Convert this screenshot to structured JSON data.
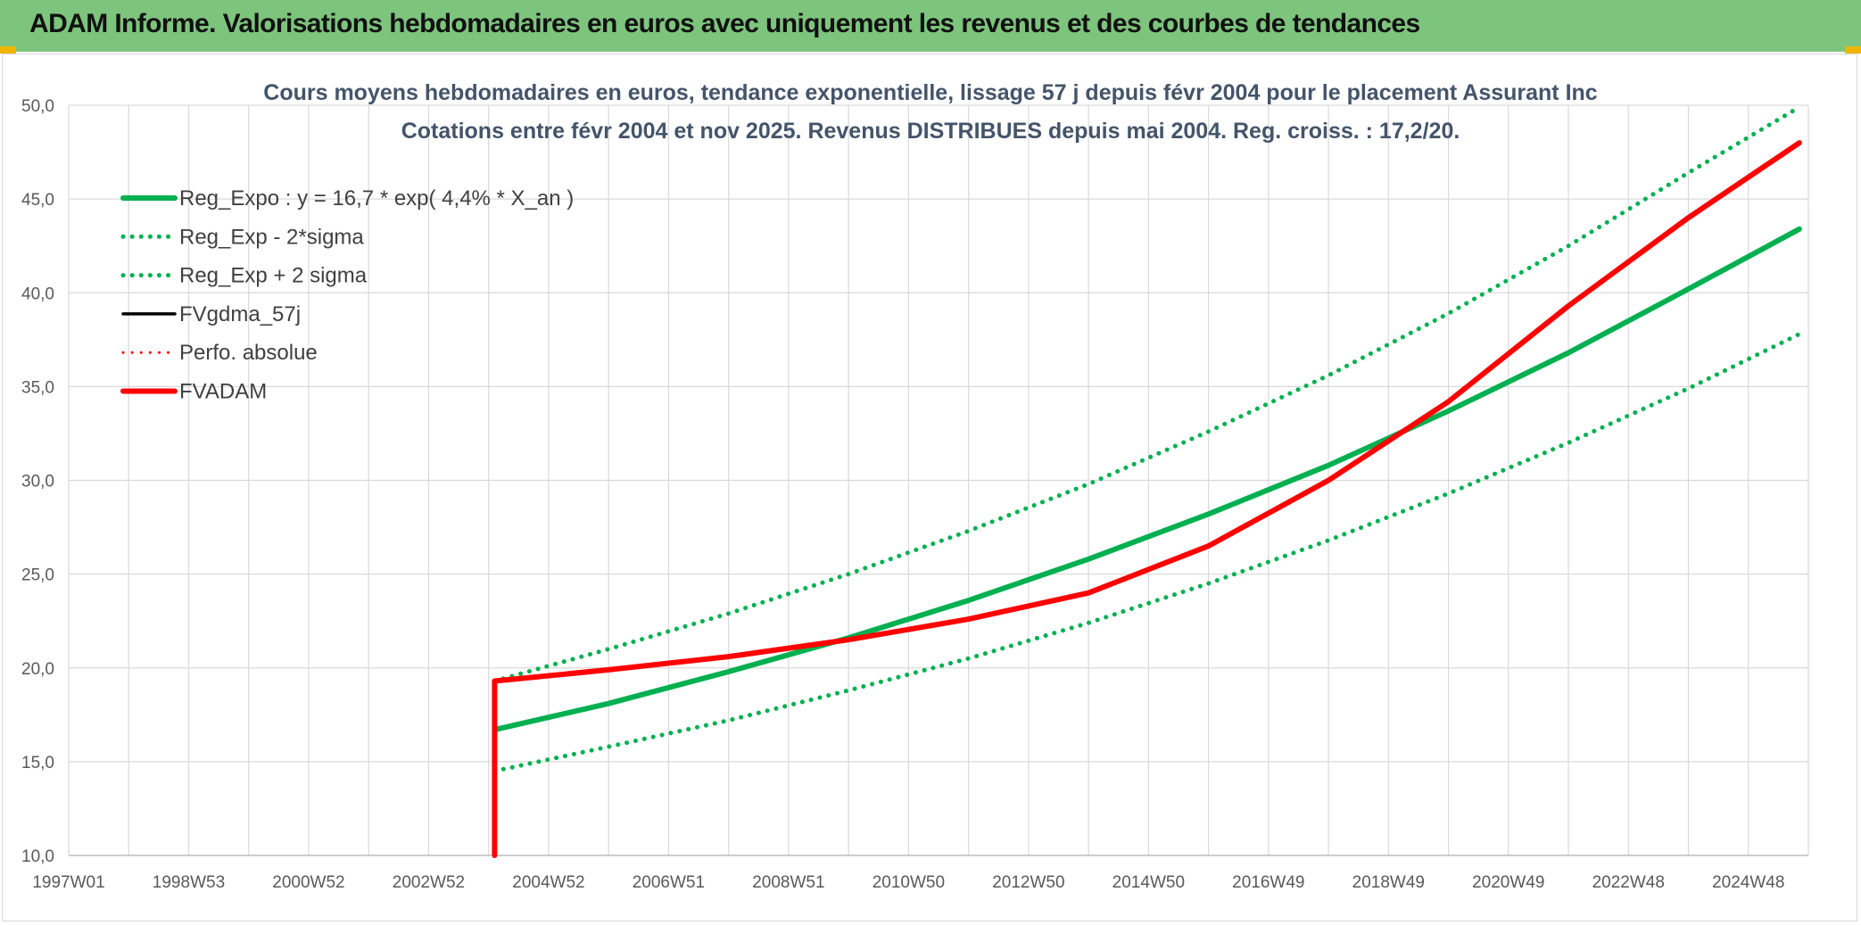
{
  "header": {
    "title": "ADAM Informe. Valorisations hebdomadaires en euros avec uniquement les revenus et des courbes de tendances"
  },
  "chart_data": {
    "type": "line",
    "title": "Cours moyens hebdomadaires en euros, tendance exponentielle, lissage 57 j depuis févr 2004 pour le placement Assurant Inc",
    "subtitle": "Cotations entre févr 2004 et nov 2025. Revenus DISTRIBUES depuis mai 2004. Reg. croiss. : 17,2/20.",
    "xlabel": "",
    "ylabel": "",
    "x_ticks": [
      "1997W01",
      "1998W53",
      "2000W52",
      "2002W52",
      "2004W52",
      "2006W51",
      "2008W51",
      "2010W50",
      "2012W50",
      "2014W50",
      "2016W49",
      "2018W49",
      "2020W49",
      "2022W48",
      "2024W48"
    ],
    "ylim": [
      10,
      50
    ],
    "xlim": [
      1997.0,
      2026.0
    ],
    "y_ticks": [
      "10,0",
      "15,0",
      "20,0",
      "25,0",
      "30,0",
      "35,0",
      "40,0",
      "45,0",
      "50,0"
    ],
    "grid": true,
    "legend_position": "top-left",
    "series": [
      {
        "name": "Reg_Expo : y = 16,7 * exp( 4,4% *  X_an )",
        "color": "#00b050",
        "style": "solid",
        "x": [
          2004.1,
          2006.0,
          2008.0,
          2010.0,
          2012.0,
          2014.0,
          2016.0,
          2018.0,
          2020.0,
          2022.0,
          2024.0,
          2025.85
        ],
        "y": [
          16.7,
          18.1,
          19.8,
          21.6,
          23.6,
          25.8,
          28.2,
          30.8,
          33.7,
          36.8,
          40.2,
          43.4
        ]
      },
      {
        "name": "Reg_Exp - 2*sigma",
        "color": "#00b050",
        "style": "dotted",
        "x": [
          2004.1,
          2006.0,
          2008.0,
          2010.0,
          2012.0,
          2014.0,
          2016.0,
          2018.0,
          2020.0,
          2022.0,
          2024.0,
          2025.85
        ],
        "y": [
          14.5,
          15.8,
          17.2,
          18.8,
          20.5,
          22.4,
          24.5,
          26.8,
          29.3,
          32.0,
          34.9,
          37.8
        ]
      },
      {
        "name": "Reg_Exp + 2 sigma",
        "color": "#00b050",
        "style": "dotted",
        "x": [
          2004.1,
          2006.0,
          2008.0,
          2010.0,
          2012.0,
          2014.0,
          2016.0,
          2018.0,
          2020.0,
          2022.0,
          2024.0,
          2025.85
        ],
        "y": [
          19.3,
          21.0,
          22.9,
          25.0,
          27.3,
          29.8,
          32.6,
          35.6,
          38.9,
          42.5,
          46.4,
          49.9
        ]
      },
      {
        "name": "FVgdma_57j",
        "color": "#000000",
        "style": "solid",
        "x": [
          2004.1,
          2006.0,
          2008.0,
          2010.0,
          2012.0,
          2014.0,
          2016.0,
          2018.0,
          2020.0,
          2022.0,
          2024.0,
          2025.85
        ],
        "y": [
          19.3,
          19.9,
          20.6,
          21.5,
          22.6,
          24.0,
          26.5,
          30.0,
          34.2,
          39.3,
          44.0,
          48.0
        ]
      },
      {
        "name": "Perfo. absolue",
        "color": "#ff0000",
        "style": "dotted",
        "x": [
          2004.1,
          2006.0,
          2008.0,
          2010.0,
          2012.0,
          2014.0,
          2016.0,
          2018.0,
          2020.0,
          2022.0,
          2024.0,
          2025.85
        ],
        "y": [
          19.3,
          19.9,
          20.6,
          21.5,
          22.6,
          24.0,
          26.5,
          30.0,
          34.2,
          39.3,
          44.0,
          48.0
        ]
      },
      {
        "name": "FVADAM",
        "color": "#ff0000",
        "style": "solid",
        "x": [
          2004.1,
          2004.1,
          2006.0,
          2008.0,
          2010.0,
          2012.0,
          2014.0,
          2016.0,
          2018.0,
          2020.0,
          2022.0,
          2024.0,
          2025.85
        ],
        "y": [
          10.0,
          19.3,
          19.9,
          20.6,
          21.5,
          22.6,
          24.0,
          26.5,
          30.0,
          34.2,
          39.3,
          44.0,
          48.0
        ]
      }
    ]
  }
}
